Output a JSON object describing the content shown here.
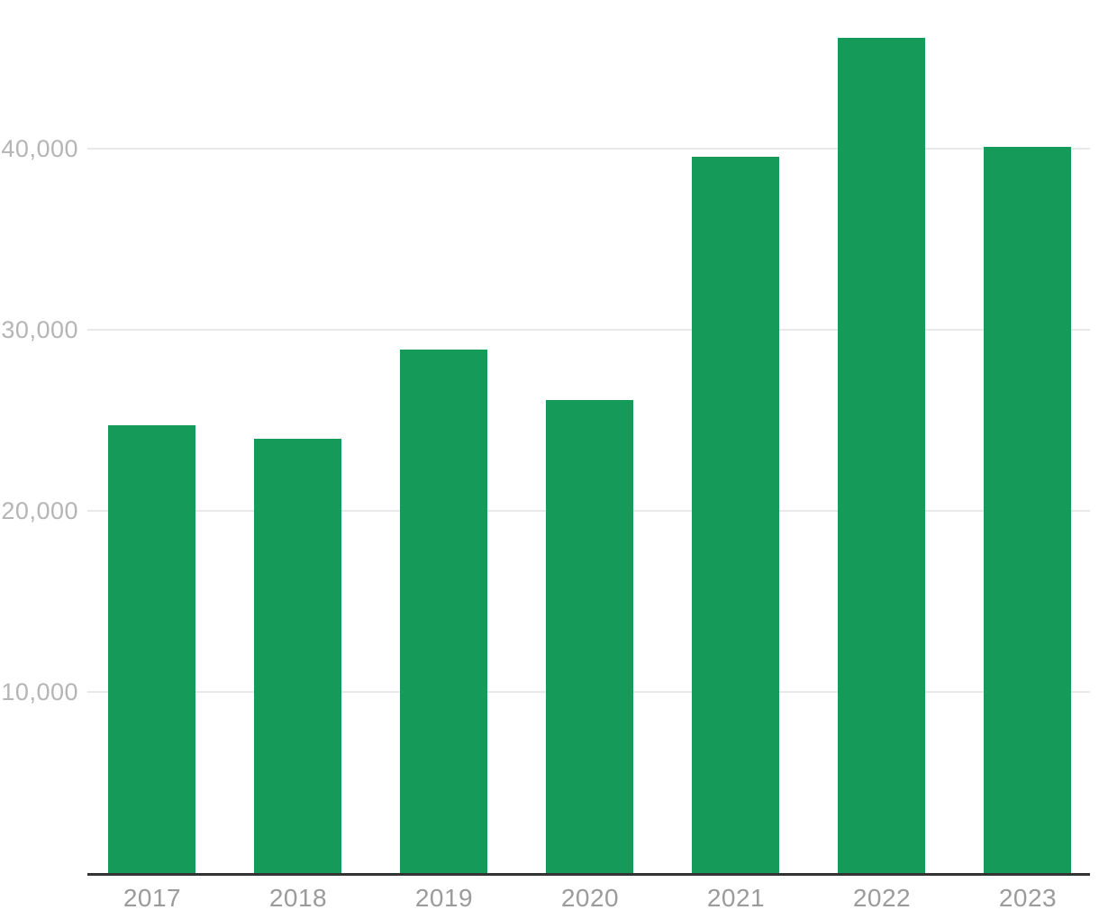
{
  "chart_data": {
    "type": "bar",
    "title": "",
    "xlabel": "",
    "ylabel": "",
    "categories": [
      "2017",
      "2018",
      "2019",
      "2020",
      "2021",
      "2022",
      "2023"
    ],
    "values": [
      24700,
      24000,
      28900,
      26100,
      39550,
      46100,
      40080
    ],
    "ylim": [
      0,
      48200
    ],
    "yticks": [
      10000,
      20000,
      30000,
      40000
    ],
    "ytick_labels": [
      "10,000",
      "20,000",
      "30,000",
      "40,000"
    ],
    "grid": true,
    "legend": "none",
    "colors": {
      "bar": "#169a59",
      "axis_line": "#333333",
      "gridline": "#e9e9e9",
      "y_tick_text": "#b5b5b5",
      "x_tick_text": "#9b9b9b",
      "background": "#ffffff"
    }
  }
}
